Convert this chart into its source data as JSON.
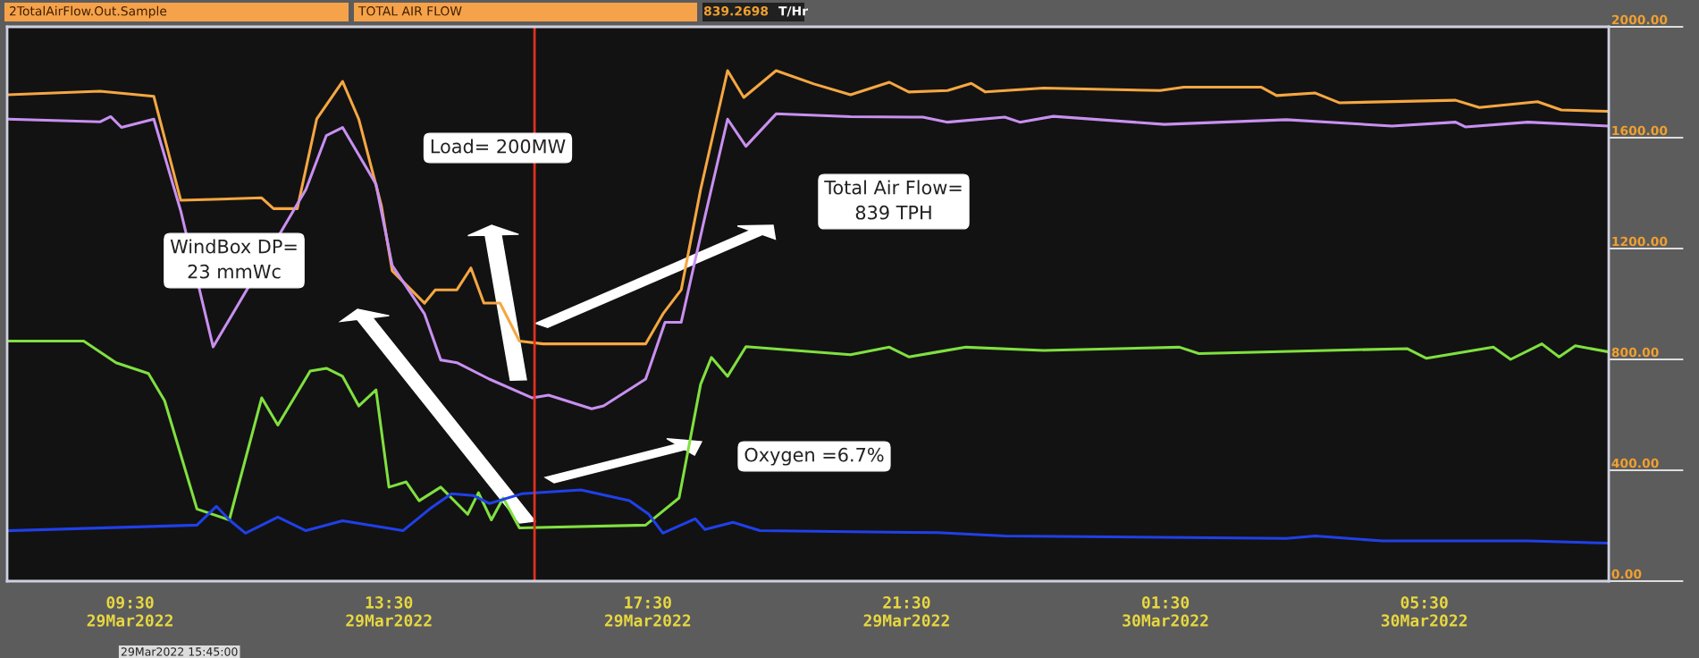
{
  "chart_data": {
    "type": "line",
    "annotations": [
      "2TotalAirFlow.Out.Sample",
      "TOTAL AIR FLOW",
      "839.2698",
      "T/Hr",
      "Load= 200MW",
      "Total Air Flow=\n839 TPH",
      "WindBox DP=\n23 mmWc",
      "Oxygen =6.7%",
      "29Mar2022 15:45:00"
    ],
    "xlim": [
      "2022-03-29T07:36",
      "2022-03-30T08:21"
    ],
    "xticks": [
      {
        "value": "2022-03-29T09:30",
        "label": "09:30\n29Mar2022"
      },
      {
        "value": "2022-03-29T13:30",
        "label": "13:30\n29Mar2022"
      },
      {
        "value": "2022-03-29T17:30",
        "label": "17:30\n29Mar2022"
      },
      {
        "value": "2022-03-29T21:30",
        "label": "21:30\n29Mar2022"
      },
      {
        "value": "2022-03-30T01:30",
        "label": "01:30\n30Mar2022"
      },
      {
        "value": "2022-03-30T05:30",
        "label": "05:30\n30Mar2022"
      }
    ],
    "ylim": [
      0,
      2000
    ],
    "yticks": [
      {
        "value": 0,
        "label": "0.00"
      },
      {
        "value": 400,
        "label": "400.00"
      },
      {
        "value": 800,
        "label": "800.00"
      },
      {
        "value": 1200,
        "label": "1200.00"
      },
      {
        "value": 1600,
        "label": "1600.00"
      },
      {
        "value": 2000,
        "label": "2000.00"
      }
    ],
    "grid": false,
    "legend": false,
    "marker": "none",
    "line_style": "solid",
    "ref_lines": [
      {
        "axis": "x",
        "value": "2022-03-29T15:45",
        "color": "#e03020"
      }
    ],
    "series": [
      {
        "color": "#f5a742",
        "x": [
          "2022-03-29T07:37",
          "2022-03-29T09:02",
          "2022-03-29T09:52",
          "2022-03-29T10:17",
          "2022-03-29T11:32",
          "2022-03-29T11:43",
          "2022-03-29T12:05",
          "2022-03-29T12:23",
          "2022-03-29T12:47",
          "2022-03-29T13:02",
          "2022-03-29T13:23",
          "2022-03-29T13:33",
          "2022-03-29T14:03",
          "2022-03-29T14:13",
          "2022-03-29T14:33",
          "2022-03-29T14:46",
          "2022-03-29T14:58",
          "2022-03-29T15:13",
          "2022-03-29T15:31",
          "2022-03-29T15:53",
          "2022-03-29T17:28",
          "2022-03-29T17:44",
          "2022-03-29T18:01",
          "2022-03-29T18:19",
          "2022-03-29T18:44",
          "2022-03-29T18:59",
          "2022-03-29T19:29",
          "2022-03-29T20:04",
          "2022-03-29T20:38",
          "2022-03-29T21:14",
          "2022-03-29T21:32",
          "2022-03-29T22:08",
          "2022-03-29T22:30",
          "2022-03-29T22:43",
          "2022-03-29T23:37",
          "2022-03-30T01:25",
          "2022-03-30T01:47",
          "2022-03-30T02:59",
          "2022-03-30T03:13",
          "2022-03-30T03:49",
          "2022-03-30T04:11",
          "2022-03-30T05:59",
          "2022-03-30T06:21",
          "2022-03-30T07:15",
          "2022-03-30T07:37",
          "2022-03-30T08:21"
        ],
        "values": [
          1755,
          1768,
          1749,
          1374,
          1383,
          1344,
          1344,
          1667,
          1803,
          1667,
          1354,
          1120,
          1003,
          1051,
          1051,
          1130,
          1003,
          1003,
          866,
          856,
          856,
          964,
          1051,
          1413,
          1842,
          1745,
          1842,
          1794,
          1755,
          1800,
          1765,
          1770,
          1796,
          1765,
          1779,
          1770,
          1782,
          1782,
          1752,
          1761,
          1726,
          1735,
          1709,
          1730,
          1700,
          1695
        ]
      },
      {
        "color": "#c890f0",
        "x": [
          "2022-03-29T07:37",
          "2022-03-29T09:02",
          "2022-03-29T09:12",
          "2022-03-29T09:22",
          "2022-03-29T09:52",
          "2022-03-29T10:17",
          "2022-03-29T10:47",
          "2022-03-29T12:13",
          "2022-03-29T12:32",
          "2022-03-29T12:47",
          "2022-03-29T13:18",
          "2022-03-29T13:33",
          "2022-03-29T14:03",
          "2022-03-29T14:18",
          "2022-03-29T14:33",
          "2022-03-29T15:03",
          "2022-03-29T15:43",
          "2022-03-29T15:58",
          "2022-03-29T16:38",
          "2022-03-29T16:49",
          "2022-03-29T17:28",
          "2022-03-29T17:46",
          "2022-03-29T18:01",
          "2022-03-29T18:23",
          "2022-03-29T18:44",
          "2022-03-29T19:01",
          "2022-03-29T19:29",
          "2022-03-29T20:38",
          "2022-03-29T21:45",
          "2022-03-29T22:08",
          "2022-03-29T23:01",
          "2022-03-29T23:15",
          "2022-03-29T23:46",
          "2022-03-30T01:29",
          "2022-03-30T03:22",
          "2022-03-30T05:00",
          "2022-03-30T05:59",
          "2022-03-30T06:08",
          "2022-03-30T07:06",
          "2022-03-30T08:21"
        ],
        "values": [
          1667,
          1657,
          1676,
          1637,
          1667,
          1335,
          845,
          1413,
          1608,
          1637,
          1432,
          1139,
          964,
          798,
          788,
          729,
          661,
          671,
          622,
          632,
          729,
          934,
          934,
          1315,
          1667,
          1569,
          1686,
          1676,
          1674,
          1656,
          1674,
          1656,
          1677,
          1648,
          1665,
          1642,
          1656,
          1639,
          1656,
          1642
        ]
      },
      {
        "color": "#80e040",
        "x": [
          "2022-03-29T07:37",
          "2022-03-29T08:47",
          "2022-03-29T09:17",
          "2022-03-29T09:47",
          "2022-03-29T10:02",
          "2022-03-29T10:32",
          "2022-03-29T11:02",
          "2022-03-29T11:32",
          "2022-03-29T11:47",
          "2022-03-29T12:17",
          "2022-03-29T12:32",
          "2022-03-29T12:47",
          "2022-03-29T13:02",
          "2022-03-29T13:18",
          "2022-03-29T13:30",
          "2022-03-29T13:46",
          "2022-03-29T13:58",
          "2022-03-29T14:18",
          "2022-03-29T14:43",
          "2022-03-29T14:53",
          "2022-03-29T15:05",
          "2022-03-29T15:16",
          "2022-03-29T15:31",
          "2022-03-29T17:28",
          "2022-03-29T17:59",
          "2022-03-29T18:19",
          "2022-03-29T18:29",
          "2022-03-29T18:44",
          "2022-03-29T19:01",
          "2022-03-29T20:38",
          "2022-03-29T21:14",
          "2022-03-29T21:32",
          "2022-03-29T21:59",
          "2022-03-29T22:25",
          "2022-03-29T23:37",
          "2022-03-30T01:43",
          "2022-03-30T02:01",
          "2022-03-30T05:14",
          "2022-03-30T05:32",
          "2022-03-30T06:34",
          "2022-03-30T06:50",
          "2022-03-30T07:19",
          "2022-03-30T07:35",
          "2022-03-30T07:50",
          "2022-03-30T08:21"
        ],
        "values": [
          866,
          866,
          788,
          749,
          651,
          260,
          221,
          661,
          563,
          758,
          768,
          739,
          632,
          690,
          339,
          358,
          290,
          339,
          241,
          319,
          221,
          300,
          192,
          202,
          300,
          710,
          807,
          739,
          846,
          817,
          844,
          809,
          827,
          844,
          832,
          844,
          821,
          839,
          804,
          844,
          800,
          856,
          809,
          849,
          827
        ]
      },
      {
        "color": "#2040e8",
        "x": [
          "2022-03-29T07:37",
          "2022-03-29T10:32",
          "2022-03-29T10:50",
          "2022-03-29T11:02",
          "2022-03-29T11:17",
          "2022-03-29T11:47",
          "2022-03-29T12:13",
          "2022-03-29T12:47",
          "2022-03-29T13:43",
          "2022-03-29T14:08",
          "2022-03-29T14:28",
          "2022-03-29T14:48",
          "2022-03-29T15:03",
          "2022-03-29T15:33",
          "2022-03-29T16:28",
          "2022-03-29T17:13",
          "2022-03-29T17:31",
          "2022-03-29T17:44",
          "2022-03-29T18:14",
          "2022-03-29T18:23",
          "2022-03-29T18:49",
          "2022-03-29T19:14",
          "2022-03-29T20:38",
          "2022-03-29T21:59",
          "2022-03-29T23:01",
          "2022-03-30T03:22",
          "2022-03-30T03:49",
          "2022-03-30T04:51",
          "2022-03-30T07:06",
          "2022-03-30T08:21"
        ],
        "values": [
          182,
          202,
          270,
          221,
          173,
          231,
          182,
          218,
          182,
          261,
          315,
          309,
          280,
          315,
          329,
          290,
          241,
          173,
          225,
          186,
          212,
          182,
          178,
          175,
          163,
          154,
          163,
          145,
          145,
          137
        ]
      }
    ]
  }
}
